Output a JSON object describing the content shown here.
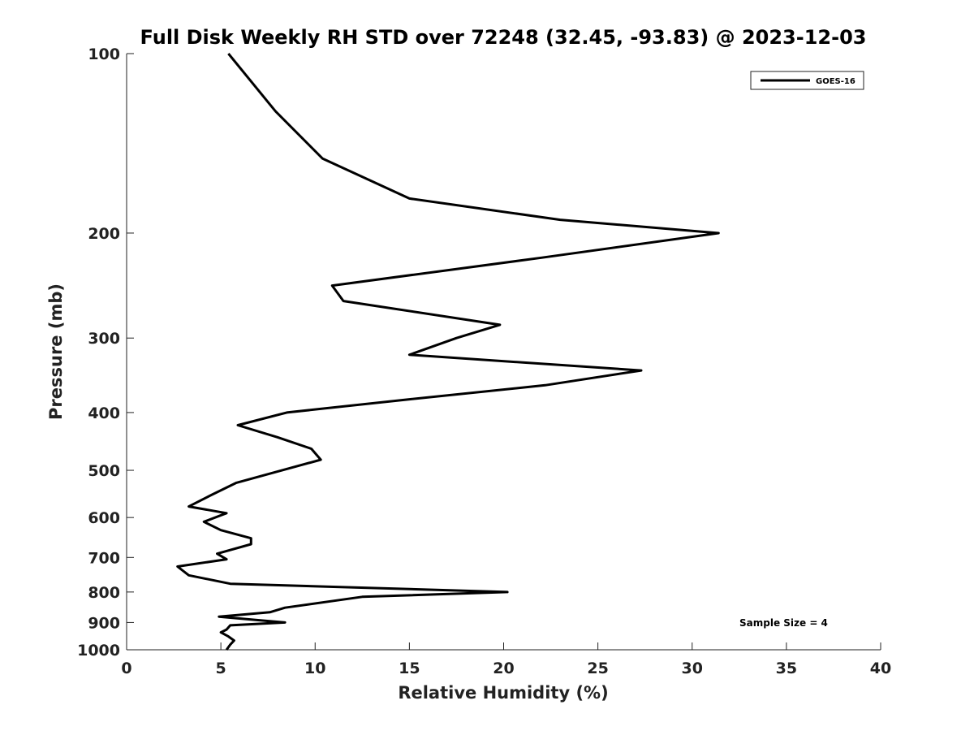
{
  "chart_data": {
    "type": "line",
    "title": "Full Disk Weekly RH STD over 72248 (32.45, -93.83) @ 2023-12-03",
    "xlabel": "Relative Humidity (%)",
    "ylabel": "Pressure (mb)",
    "xlim": [
      0,
      40
    ],
    "ylim": [
      100,
      1000
    ],
    "y_scale": "log",
    "y_inverted": true,
    "x_ticks": [
      0,
      5,
      10,
      15,
      20,
      25,
      30,
      35,
      40
    ],
    "y_ticks": [
      100,
      200,
      300,
      400,
      500,
      600,
      700,
      800,
      900,
      1000
    ],
    "grid": false,
    "legend_position": "top-right",
    "annotation": "Sample Size = 4",
    "series": [
      {
        "name": "GOES-16",
        "color": "#000000",
        "points": [
          [
            5.4,
            100
          ],
          [
            7.9,
            125
          ],
          [
            10.4,
            150
          ],
          [
            15.0,
            175
          ],
          [
            23.0,
            190
          ],
          [
            31.4,
            200
          ],
          [
            22.0,
            220
          ],
          [
            10.9,
            245
          ],
          [
            11.5,
            260
          ],
          [
            19.8,
            285
          ],
          [
            17.5,
            300
          ],
          [
            15.0,
            320
          ],
          [
            27.3,
            340
          ],
          [
            22.2,
            360
          ],
          [
            15.0,
            380
          ],
          [
            8.5,
            400
          ],
          [
            5.9,
            420
          ],
          [
            8.0,
            440
          ],
          [
            9.8,
            460
          ],
          [
            10.3,
            480
          ],
          [
            5.8,
            525
          ],
          [
            4.5,
            550
          ],
          [
            3.3,
            575
          ],
          [
            5.3,
            590
          ],
          [
            4.1,
            610
          ],
          [
            5.0,
            630
          ],
          [
            6.6,
            650
          ],
          [
            6.6,
            665
          ],
          [
            4.8,
            690
          ],
          [
            5.3,
            705
          ],
          [
            2.7,
            725
          ],
          [
            3.3,
            750
          ],
          [
            5.5,
            775
          ],
          [
            20.2,
            800
          ],
          [
            12.5,
            815
          ],
          [
            8.4,
            850
          ],
          [
            7.6,
            865
          ],
          [
            4.9,
            880
          ],
          [
            8.4,
            900
          ],
          [
            5.5,
            910
          ],
          [
            5.3,
            925
          ],
          [
            5.0,
            935
          ],
          [
            5.4,
            950
          ],
          [
            5.7,
            965
          ],
          [
            5.5,
            980
          ],
          [
            5.3,
            1000
          ]
        ]
      }
    ]
  }
}
